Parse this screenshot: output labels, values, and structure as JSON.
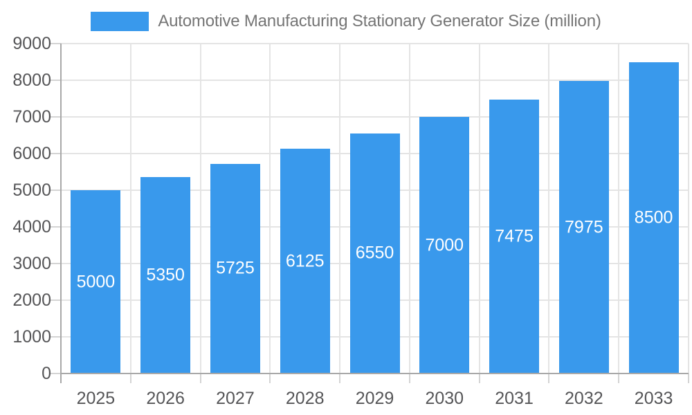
{
  "chart_data": {
    "type": "bar",
    "title": "Automotive Manufacturing Stationary Generator Size (million)",
    "series_name": "Automotive Manufacturing Stationary Generator Size (million)",
    "categories": [
      "2025",
      "2026",
      "2027",
      "2028",
      "2029",
      "2030",
      "2031",
      "2032",
      "2033"
    ],
    "values": [
      5000,
      5350,
      5725,
      6125,
      6550,
      7000,
      7475,
      7975,
      8500
    ],
    "bar_value_labels": [
      "5000",
      "5350",
      "5725",
      "6125",
      "6550",
      "7000",
      "7475",
      "7975",
      "8500"
    ],
    "xlabel": "",
    "ylabel": "",
    "ylim": [
      0,
      9000
    ],
    "y_tick_labels": [
      "0",
      "1000",
      "2000",
      "3000",
      "4000",
      "5000",
      "6000",
      "7000",
      "8000",
      "9000"
    ],
    "grid": true,
    "legend_position": "top"
  },
  "colors": {
    "bar": "#3999EC",
    "title_text": "#757575",
    "axis_text": "#555557",
    "gridline": "#E4E4E4",
    "axis_line": "#A8A8A8",
    "tick": "#D4D4D4",
    "bar_label_text": "#FFFFFF",
    "background": "#FFFFFF"
  }
}
